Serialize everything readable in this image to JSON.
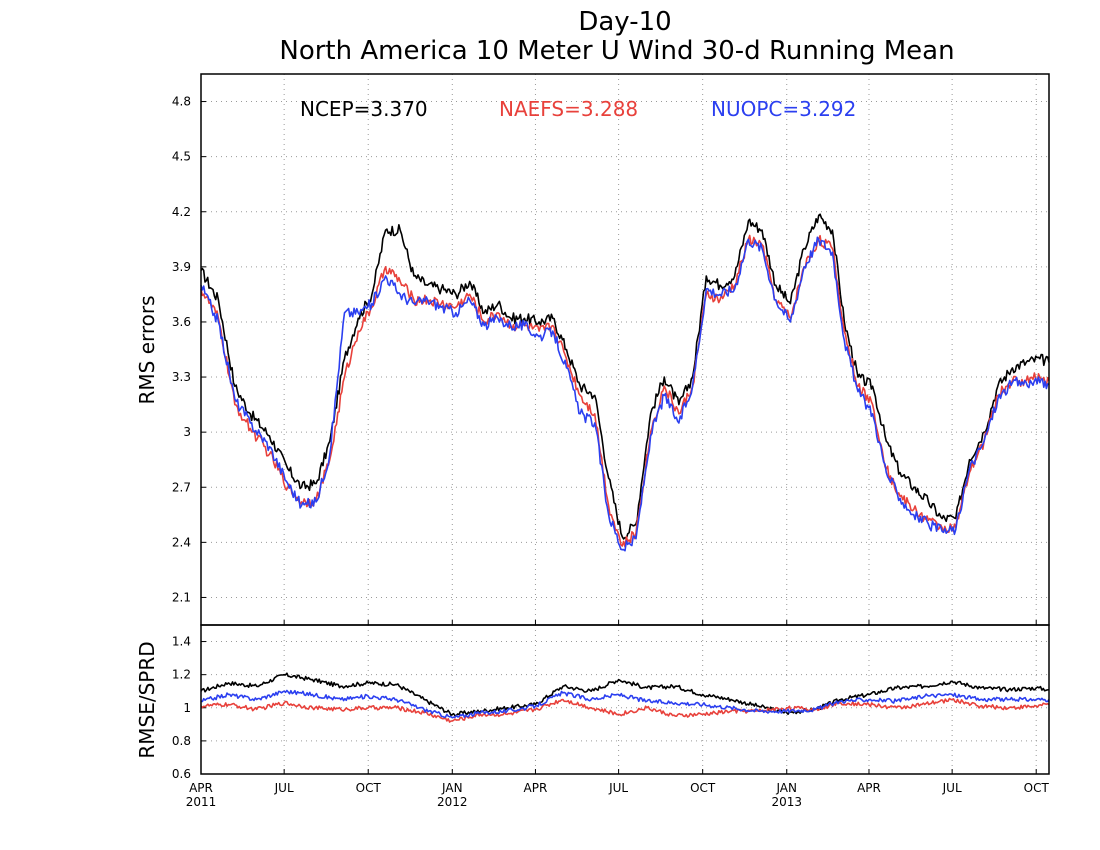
{
  "chart_data": [
    {
      "type": "line",
      "title": "Day-10",
      "subtitle": "North America 10 Meter U Wind 30-d Running Mean",
      "ylabel": "RMS errors",
      "ylim": [
        1.95,
        4.95
      ],
      "yticks": [
        "2.1",
        "2.4",
        "2.7",
        "3",
        "3.3",
        "3.6",
        "3.9",
        "4.2",
        "4.5",
        "4.8"
      ],
      "grid": true,
      "xlim": [
        "2011-04-01",
        "2013-10-15"
      ],
      "legend": [
        {
          "name": "NCEP",
          "label": "NCEP=3.370",
          "color": "#000000"
        },
        {
          "name": "NAEFS",
          "label": "NAEFS=3.288",
          "color": "#e8413b"
        },
        {
          "name": "NUOPC",
          "label": "NUOPC=3.292",
          "color": "#2b3ff0"
        }
      ],
      "series": [
        {
          "name": "NCEP",
          "color": "#000000",
          "x": [
            "2011-04-01",
            "2011-04-20",
            "2011-05-08",
            "2011-05-25",
            "2011-06-15",
            "2011-07-05",
            "2011-07-20",
            "2011-08-05",
            "2011-08-20",
            "2011-09-05",
            "2011-09-20",
            "2011-10-05",
            "2011-10-20",
            "2011-11-05",
            "2011-11-20",
            "2011-12-05",
            "2011-12-20",
            "2012-01-05",
            "2012-01-20",
            "2012-02-05",
            "2012-02-20",
            "2012-03-05",
            "2012-03-20",
            "2012-04-05",
            "2012-04-20",
            "2012-05-05",
            "2012-05-20",
            "2012-06-05",
            "2012-06-20",
            "2012-07-05",
            "2012-07-20",
            "2012-08-05",
            "2012-08-20",
            "2012-09-05",
            "2012-09-20",
            "2012-10-05",
            "2012-10-20",
            "2012-11-05",
            "2012-11-20",
            "2012-12-05",
            "2012-12-20",
            "2013-01-05",
            "2013-01-20",
            "2013-02-05",
            "2013-02-20",
            "2013-03-05",
            "2013-03-20",
            "2013-04-05",
            "2013-04-20",
            "2013-05-05",
            "2013-05-20",
            "2013-06-05",
            "2013-06-20",
            "2013-07-05",
            "2013-07-20",
            "2013-08-05",
            "2013-08-20",
            "2013-09-05",
            "2013-09-20",
            "2013-10-05",
            "2013-10-15"
          ],
          "y": [
            3.88,
            3.72,
            3.25,
            3.1,
            2.98,
            2.8,
            2.7,
            2.72,
            2.95,
            3.4,
            3.62,
            3.75,
            4.1,
            4.1,
            3.85,
            3.8,
            3.78,
            3.75,
            3.82,
            3.65,
            3.7,
            3.62,
            3.62,
            3.6,
            3.62,
            3.45,
            3.25,
            3.2,
            2.75,
            2.43,
            2.5,
            3.1,
            3.3,
            3.15,
            3.3,
            3.85,
            3.8,
            3.85,
            4.15,
            4.1,
            3.8,
            3.7,
            4.0,
            4.18,
            4.1,
            3.6,
            3.3,
            3.25,
            2.95,
            2.78,
            2.7,
            2.62,
            2.53,
            2.53,
            2.85,
            3.0,
            3.25,
            3.35,
            3.38,
            3.4,
            3.38
          ]
        },
        {
          "name": "NAEFS",
          "color": "#e8413b",
          "x": [
            "2011-04-01",
            "2011-04-20",
            "2011-05-08",
            "2011-05-25",
            "2011-06-15",
            "2011-07-05",
            "2011-07-20",
            "2011-08-05",
            "2011-08-20",
            "2011-09-05",
            "2011-09-20",
            "2011-10-05",
            "2011-10-20",
            "2011-11-05",
            "2011-11-20",
            "2011-12-05",
            "2011-12-20",
            "2012-01-05",
            "2012-01-20",
            "2012-02-05",
            "2012-02-20",
            "2012-03-05",
            "2012-03-20",
            "2012-04-05",
            "2012-04-20",
            "2012-05-05",
            "2012-05-20",
            "2012-06-05",
            "2012-06-20",
            "2012-07-05",
            "2012-07-20",
            "2012-08-05",
            "2012-08-20",
            "2012-09-05",
            "2012-09-20",
            "2012-10-05",
            "2012-10-20",
            "2012-11-05",
            "2012-11-20",
            "2012-12-05",
            "2012-12-20",
            "2013-01-05",
            "2013-01-20",
            "2013-02-05",
            "2013-02-20",
            "2013-03-05",
            "2013-03-20",
            "2013-04-05",
            "2013-04-20",
            "2013-05-05",
            "2013-05-20",
            "2013-06-05",
            "2013-06-20",
            "2013-07-05",
            "2013-07-20",
            "2013-08-05",
            "2013-08-20",
            "2013-09-05",
            "2013-09-20",
            "2013-10-05",
            "2013-10-15"
          ],
          "y": [
            3.78,
            3.62,
            3.15,
            3.02,
            2.88,
            2.7,
            2.62,
            2.63,
            2.85,
            3.3,
            3.55,
            3.68,
            3.9,
            3.82,
            3.72,
            3.72,
            3.7,
            3.68,
            3.75,
            3.6,
            3.65,
            3.58,
            3.58,
            3.55,
            3.58,
            3.4,
            3.2,
            3.1,
            2.6,
            2.38,
            2.45,
            3.0,
            3.25,
            3.1,
            3.25,
            3.75,
            3.72,
            3.8,
            4.05,
            4.02,
            3.72,
            3.62,
            3.9,
            4.05,
            4.0,
            3.55,
            3.25,
            3.15,
            2.8,
            2.65,
            2.58,
            2.52,
            2.48,
            2.48,
            2.78,
            2.95,
            3.2,
            3.28,
            3.28,
            3.3,
            3.28
          ]
        },
        {
          "name": "NUOPC",
          "color": "#2b3ff0",
          "x": [
            "2011-04-01",
            "2011-04-20",
            "2011-05-08",
            "2011-05-25",
            "2011-06-15",
            "2011-07-05",
            "2011-07-20",
            "2011-08-05",
            "2011-08-20",
            "2011-09-05",
            "2011-09-20",
            "2011-10-05",
            "2011-10-20",
            "2011-11-05",
            "2011-11-20",
            "2011-12-05",
            "2011-12-20",
            "2012-01-05",
            "2012-01-20",
            "2012-02-05",
            "2012-02-20",
            "2012-03-05",
            "2012-03-20",
            "2012-04-05",
            "2012-04-20",
            "2012-05-05",
            "2012-05-20",
            "2012-06-05",
            "2012-06-20",
            "2012-07-05",
            "2012-07-20",
            "2012-08-05",
            "2012-08-20",
            "2012-09-05",
            "2012-09-20",
            "2012-10-05",
            "2012-10-20",
            "2012-11-05",
            "2012-11-20",
            "2012-12-05",
            "2012-12-20",
            "2013-01-05",
            "2013-01-20",
            "2013-02-05",
            "2013-02-20",
            "2013-03-05",
            "2013-03-20",
            "2013-04-05",
            "2013-04-20",
            "2013-05-05",
            "2013-05-20",
            "2013-06-05",
            "2013-06-20",
            "2013-07-05",
            "2013-07-20",
            "2013-08-05",
            "2013-08-20",
            "2013-09-05",
            "2013-09-20",
            "2013-10-05",
            "2013-10-15"
          ],
          "y": [
            3.8,
            3.6,
            3.18,
            3.05,
            2.92,
            2.72,
            2.6,
            2.62,
            2.88,
            3.65,
            3.65,
            3.7,
            3.85,
            3.75,
            3.7,
            3.72,
            3.68,
            3.65,
            3.72,
            3.58,
            3.62,
            3.58,
            3.58,
            3.52,
            3.55,
            3.35,
            3.1,
            3.05,
            2.55,
            2.36,
            2.42,
            2.98,
            3.2,
            3.05,
            3.25,
            3.78,
            3.75,
            3.78,
            4.05,
            4.0,
            3.72,
            3.6,
            3.9,
            4.05,
            3.98,
            3.5,
            3.22,
            3.1,
            2.78,
            2.64,
            2.55,
            2.5,
            2.46,
            2.47,
            2.8,
            2.95,
            3.18,
            3.27,
            3.27,
            3.27,
            3.26
          ]
        }
      ]
    },
    {
      "type": "line",
      "ylabel": "RMSE/SPRD",
      "ylim": [
        0.6,
        1.5
      ],
      "yticks": [
        "0.6",
        "0.8",
        "1",
        "1.2",
        "1.4"
      ],
      "grid": true,
      "xlim": [
        "2011-04-01",
        "2013-10-15"
      ],
      "xticks": [
        {
          "label": "APR",
          "year": "2011",
          "date": "2011-04-01"
        },
        {
          "label": "JUL",
          "year": "",
          "date": "2011-07-01"
        },
        {
          "label": "OCT",
          "year": "",
          "date": "2011-10-01"
        },
        {
          "label": "JAN",
          "year": "2012",
          "date": "2012-01-01"
        },
        {
          "label": "APR",
          "year": "",
          "date": "2012-04-01"
        },
        {
          "label": "JUL",
          "year": "",
          "date": "2012-07-01"
        },
        {
          "label": "OCT",
          "year": "",
          "date": "2012-10-01"
        },
        {
          "label": "JAN",
          "year": "2013",
          "date": "2013-01-01"
        },
        {
          "label": "APR",
          "year": "",
          "date": "2013-04-01"
        },
        {
          "label": "JUL",
          "year": "",
          "date": "2013-07-01"
        },
        {
          "label": "OCT",
          "year": "",
          "date": "2013-10-01"
        }
      ],
      "series": [
        {
          "name": "NCEP",
          "color": "#000000",
          "x": [
            "2011-04-01",
            "2011-05-01",
            "2011-06-01",
            "2011-07-01",
            "2011-08-01",
            "2011-09-01",
            "2011-10-01",
            "2011-11-01",
            "2011-12-01",
            "2012-01-01",
            "2012-02-01",
            "2012-03-01",
            "2012-04-01",
            "2012-05-01",
            "2012-06-01",
            "2012-07-01",
            "2012-08-01",
            "2012-09-01",
            "2012-10-01",
            "2012-11-01",
            "2012-12-01",
            "2013-01-01",
            "2013-02-01",
            "2013-03-01",
            "2013-04-01",
            "2013-05-01",
            "2013-06-01",
            "2013-07-01",
            "2013-08-01",
            "2013-09-01",
            "2013-10-01",
            "2013-10-15"
          ],
          "y": [
            1.1,
            1.15,
            1.13,
            1.2,
            1.17,
            1.13,
            1.15,
            1.14,
            1.05,
            0.96,
            0.98,
            1.0,
            1.02,
            1.13,
            1.1,
            1.17,
            1.12,
            1.13,
            1.08,
            1.05,
            1.01,
            0.97,
            0.99,
            1.05,
            1.08,
            1.12,
            1.13,
            1.16,
            1.12,
            1.11,
            1.12,
            1.11
          ]
        },
        {
          "name": "NAEFS",
          "color": "#e8413b",
          "x": [
            "2011-04-01",
            "2011-05-01",
            "2011-06-01",
            "2011-07-01",
            "2011-08-01",
            "2011-09-01",
            "2011-10-01",
            "2011-11-01",
            "2011-12-01",
            "2012-01-01",
            "2012-02-01",
            "2012-03-01",
            "2012-04-01",
            "2012-05-01",
            "2012-06-01",
            "2012-07-01",
            "2012-08-01",
            "2012-09-01",
            "2012-10-01",
            "2012-11-01",
            "2012-12-01",
            "2013-01-01",
            "2013-02-01",
            "2013-03-01",
            "2013-04-01",
            "2013-05-01",
            "2013-06-01",
            "2013-07-01",
            "2013-08-01",
            "2013-09-01",
            "2013-10-01",
            "2013-10-15"
          ],
          "y": [
            1.01,
            1.02,
            0.99,
            1.03,
            1.0,
            0.99,
            1.0,
            1.0,
            0.97,
            0.92,
            0.96,
            0.96,
            0.99,
            1.05,
            1.0,
            0.96,
            1.0,
            0.95,
            0.96,
            0.98,
            0.98,
            1.0,
            0.99,
            1.03,
            1.02,
            1.0,
            1.02,
            1.05,
            1.01,
            1.0,
            1.01,
            1.02
          ]
        },
        {
          "name": "NUOPC",
          "color": "#2b3ff0",
          "x": [
            "2011-04-01",
            "2011-05-01",
            "2011-06-01",
            "2011-07-01",
            "2011-08-01",
            "2011-09-01",
            "2011-10-01",
            "2011-11-01",
            "2011-12-01",
            "2012-01-01",
            "2012-02-01",
            "2012-03-01",
            "2012-04-01",
            "2012-05-01",
            "2012-06-01",
            "2012-07-01",
            "2012-08-01",
            "2012-09-01",
            "2012-10-01",
            "2012-11-01",
            "2012-12-01",
            "2013-01-01",
            "2013-02-01",
            "2013-03-01",
            "2013-04-01",
            "2013-05-01",
            "2013-06-01",
            "2013-07-01",
            "2013-08-01",
            "2013-09-01",
            "2013-10-01",
            "2013-10-15"
          ],
          "y": [
            1.04,
            1.08,
            1.05,
            1.1,
            1.08,
            1.05,
            1.07,
            1.05,
            0.99,
            0.94,
            0.97,
            0.98,
            1.01,
            1.09,
            1.05,
            1.08,
            1.04,
            1.03,
            1.02,
            1.0,
            0.98,
            0.98,
            0.99,
            1.04,
            1.05,
            1.04,
            1.07,
            1.08,
            1.05,
            1.05,
            1.05,
            1.05
          ]
        }
      ]
    }
  ]
}
